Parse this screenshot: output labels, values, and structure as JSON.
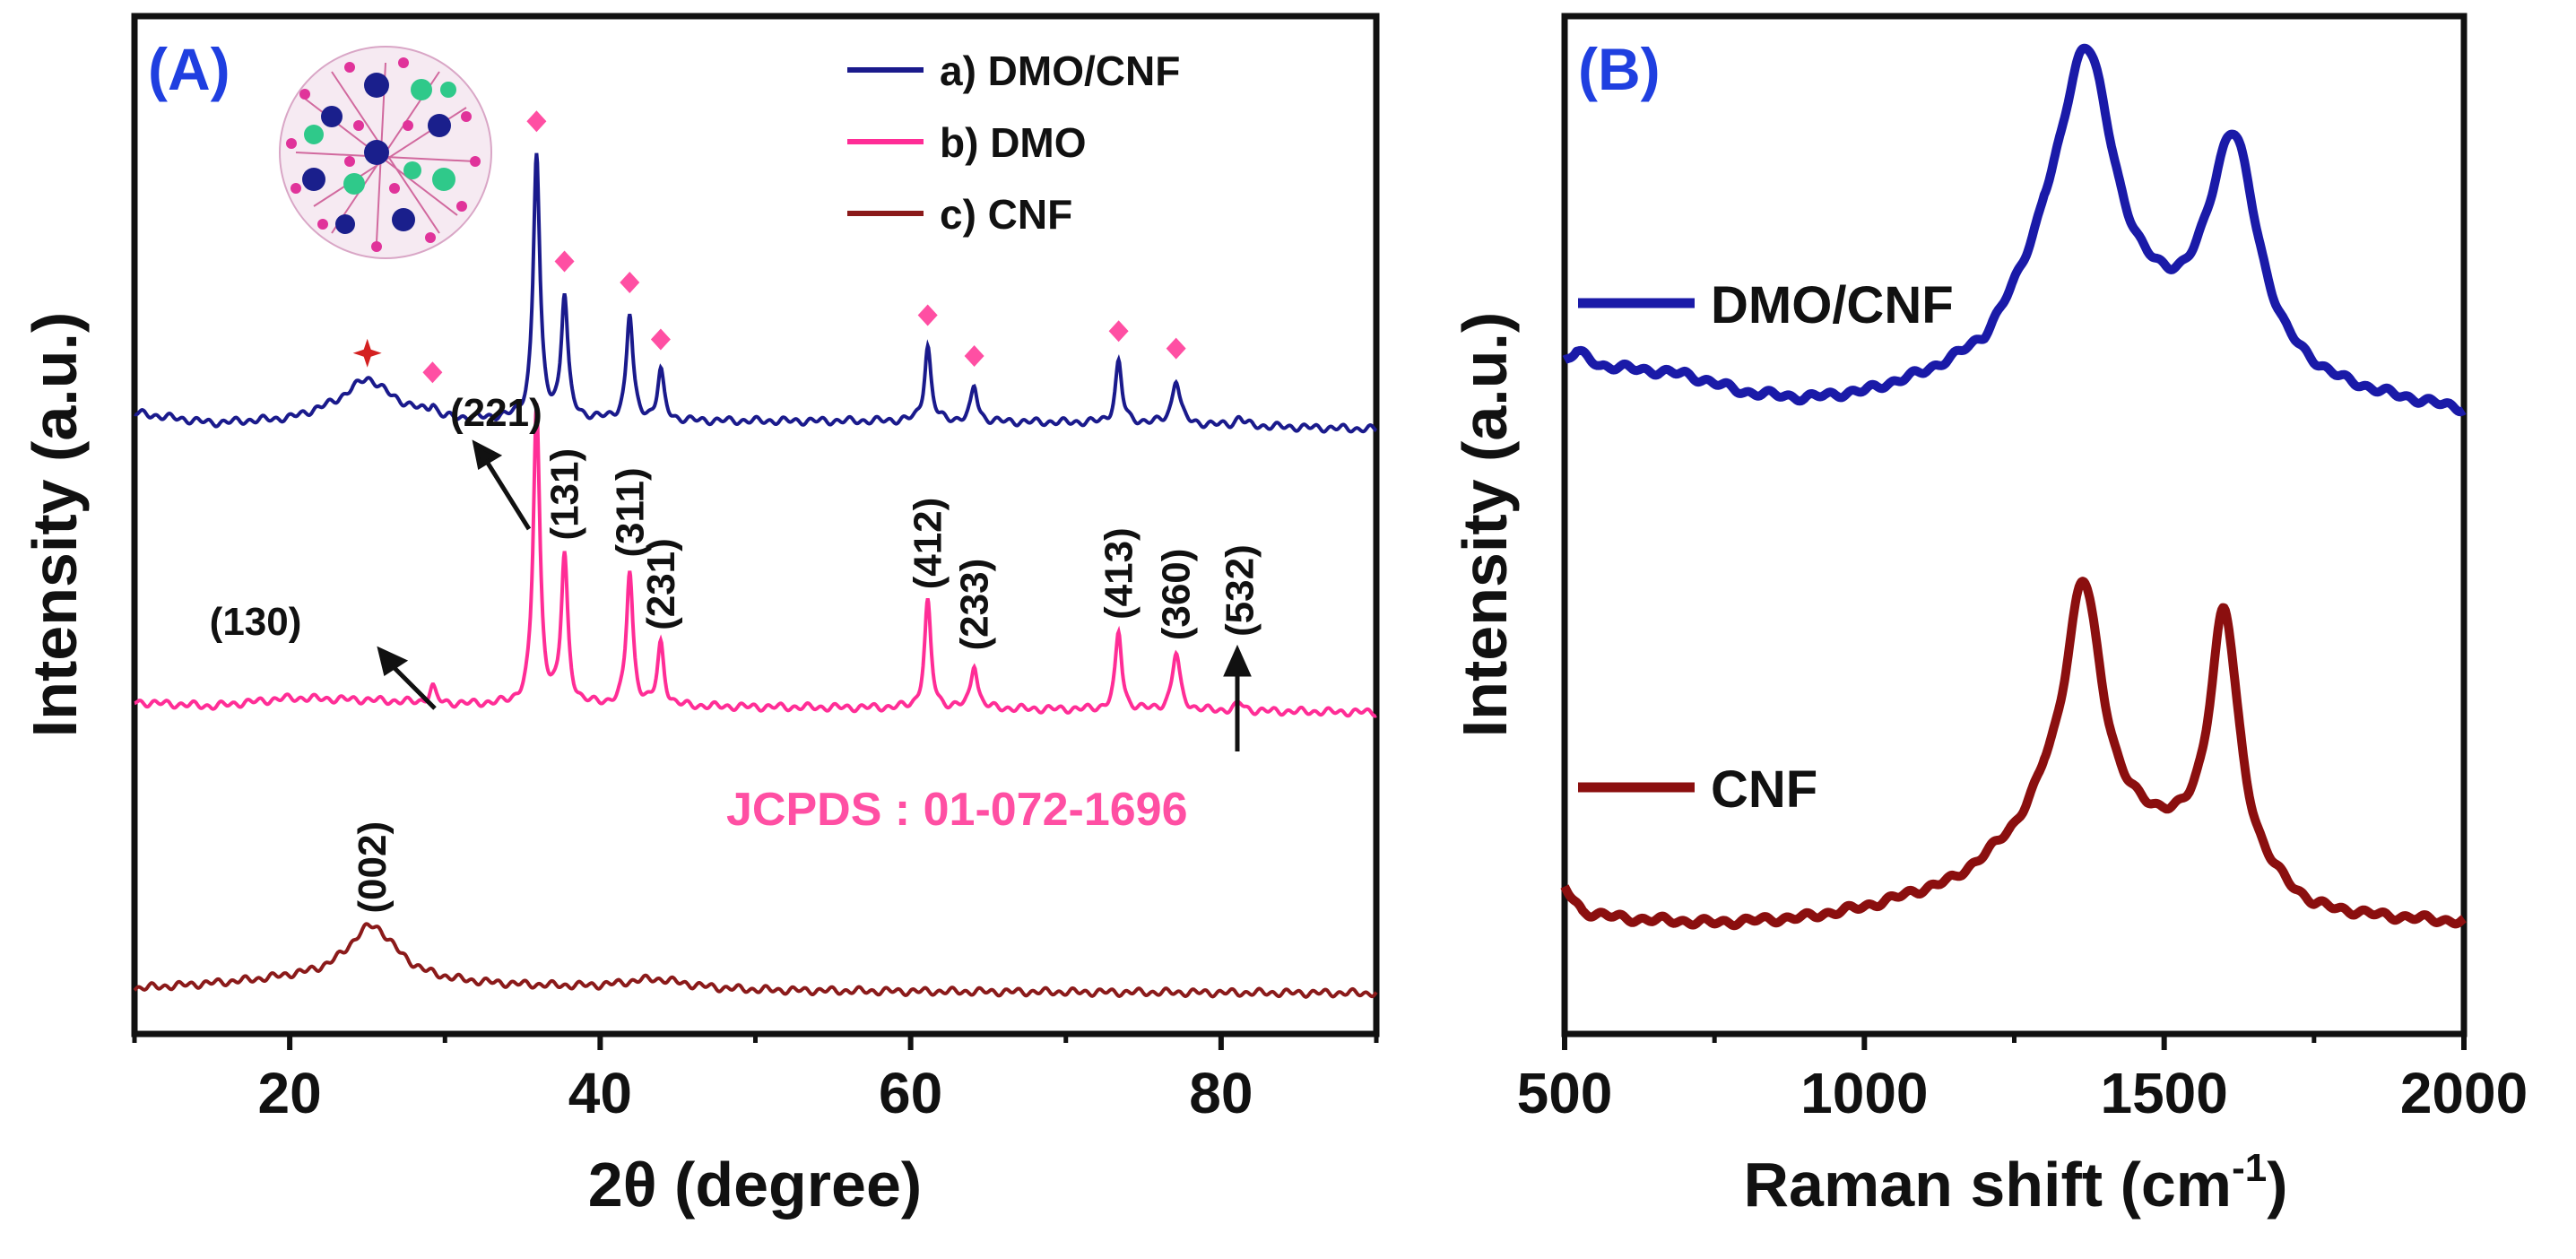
{
  "figure": {
    "description_labels": [
      "(A)",
      "(B)"
    ]
  },
  "chart_data": [
    {
      "type": "line",
      "panel_label": "(A)",
      "xlabel": "2θ (degree)",
      "ylabel": "Intensity (a.u.)",
      "xlim": [
        10,
        90
      ],
      "xticks": [
        20,
        40,
        60,
        80
      ],
      "series": [
        {
          "name": "a) DMO/CNF",
          "color": "#1a1a8c",
          "offset": 3.0,
          "baseline": [
            [
              10,
              0.05
            ],
            [
              15,
              0.0
            ],
            [
              20,
              0.02
            ],
            [
              25,
              0.12
            ],
            [
              30,
              0.02
            ],
            [
              35,
              0.02
            ],
            [
              45,
              0.01
            ],
            [
              60,
              0.01
            ],
            [
              75,
              0.0
            ],
            [
              90,
              -0.03
            ]
          ],
          "peaks": [
            [
              25,
              0.1,
              1.5
            ],
            [
              29.2,
              0.05,
              0.25
            ],
            [
              35.9,
              1.3,
              0.25
            ],
            [
              37.7,
              0.6,
              0.25
            ],
            [
              41.9,
              0.52,
              0.25
            ],
            [
              43.9,
              0.24,
              0.25
            ],
            [
              61.1,
              0.37,
              0.25
            ],
            [
              64.1,
              0.17,
              0.25
            ],
            [
              73.4,
              0.3,
              0.25
            ],
            [
              77.1,
              0.22,
              0.3
            ],
            [
              81.2,
              0.04,
              0.3
            ]
          ]
        },
        {
          "name": "b) DMO",
          "color": "#ff2d96",
          "offset": 1.6,
          "baseline": [
            [
              10,
              0.03
            ],
            [
              15,
              0.01
            ],
            [
              20,
              0.05
            ],
            [
              25,
              0.04
            ],
            [
              30,
              0.02
            ],
            [
              40,
              0.01
            ],
            [
              60,
              0.0
            ],
            [
              90,
              -0.02
            ]
          ],
          "peaks": [
            [
              29.2,
              0.08,
              0.25
            ],
            [
              35.9,
              1.47,
              0.25
            ],
            [
              37.7,
              0.72,
              0.25
            ],
            [
              41.9,
              0.66,
              0.25
            ],
            [
              43.9,
              0.3,
              0.25
            ],
            [
              61.1,
              0.52,
              0.25
            ],
            [
              64.1,
              0.22,
              0.25
            ],
            [
              73.4,
              0.38,
              0.25
            ],
            [
              77.1,
              0.28,
              0.3
            ],
            [
              81.2,
              0.04,
              0.3
            ]
          ]
        },
        {
          "name": "c) CNF",
          "color": "#8b1a1a",
          "offset": 0.2,
          "baseline": [
            [
              10,
              0.02
            ],
            [
              20,
              0.06
            ],
            [
              30,
              0.04
            ],
            [
              40,
              0.02
            ],
            [
              50,
              0.01
            ],
            [
              90,
              0.0
            ]
          ],
          "peaks": [
            [
              25.3,
              0.28,
              2.0
            ],
            [
              43.5,
              0.05,
              2.5
            ]
          ]
        }
      ],
      "diamond_markers_2theta": [
        29.2,
        35.9,
        37.7,
        41.9,
        43.9,
        61.1,
        64.1,
        73.4,
        77.1
      ],
      "star_marker_2theta": 25,
      "hkl_labels": [
        {
          "text": "(221)",
          "two_theta": 35.9
        },
        {
          "text": "(131)",
          "two_theta": 37.7
        },
        {
          "text": "(311)",
          "two_theta": 41.9
        },
        {
          "text": "(231)",
          "two_theta": 43.9
        },
        {
          "text": "(412)",
          "two_theta": 61.1
        },
        {
          "text": "(233)",
          "two_theta": 64.1
        },
        {
          "text": "(413)",
          "two_theta": 73.4
        },
        {
          "text": "(360)",
          "two_theta": 77.1
        },
        {
          "text": "(532)",
          "two_theta": 81.2
        },
        {
          "text": "(130)",
          "two_theta": 29.2
        },
        {
          "text": "(002)",
          "two_theta": 25.3
        }
      ],
      "annotation": "JCPDS : 01-072-1696"
    },
    {
      "type": "line",
      "panel_label": "(B)",
      "xlabel": "Raman shift (cm",
      "xlabel_superscript": "-1",
      "xlabel_suffix": ")",
      "ylabel": "Intensity (a.u.)",
      "xlim": [
        500,
        2000
      ],
      "xticks": [
        500,
        1000,
        1500,
        2000
      ],
      "series": [
        {
          "name": "DMO/CNF",
          "color": "#1a1aa8",
          "offset": 2.2,
          "baseline": [
            [
              500,
              0.22
            ],
            [
              520,
              0.26
            ],
            [
              560,
              0.2
            ],
            [
              700,
              0.16
            ],
            [
              800,
              0.08
            ],
            [
              900,
              0.05
            ],
            [
              1000,
              0.07
            ],
            [
              1100,
              0.13
            ],
            [
              1200,
              0.22
            ],
            [
              1300,
              0.5
            ],
            [
              1500,
              0.32
            ],
            [
              1700,
              0.12
            ],
            [
              1800,
              0.07
            ],
            [
              2000,
              0.0
            ]
          ],
          "peaks": [
            [
              1370,
              1.1,
              55
            ],
            [
              1615,
              0.95,
              50
            ]
          ]
        },
        {
          "name": "CNF",
          "color": "#8b0f0f",
          "offset": 0.0,
          "baseline": [
            [
              500,
              0.17
            ],
            [
              530,
              0.07
            ],
            [
              600,
              0.04
            ],
            [
              750,
              0.02
            ],
            [
              900,
              0.04
            ],
            [
              1000,
              0.08
            ],
            [
              1150,
              0.18
            ],
            [
              1250,
              0.34
            ],
            [
              1300,
              0.45
            ],
            [
              1500,
              0.36
            ],
            [
              1700,
              0.12
            ],
            [
              1750,
              0.06
            ],
            [
              1850,
              0.04
            ],
            [
              2000,
              0.02
            ]
          ],
          "peaks": [
            [
              1365,
              1.05,
              38
            ],
            [
              1600,
              1.1,
              30
            ]
          ]
        }
      ]
    }
  ]
}
